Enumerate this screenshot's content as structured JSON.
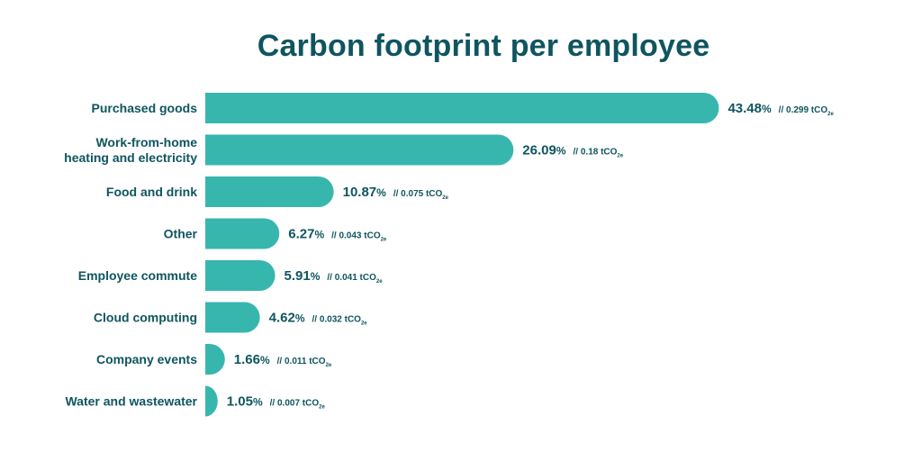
{
  "colors": {
    "bar": "#37b6ae",
    "text": "#0f5560",
    "background": "#ffffff"
  },
  "chart_data": {
    "type": "bar",
    "orientation": "horizontal",
    "title": "Carbon footprint per employee",
    "categories": [
      [
        "Purchased goods"
      ],
      [
        "Work-from-home",
        "heating and electricity"
      ],
      [
        "Food and drink"
      ],
      [
        "Other"
      ],
      [
        "Employee commute"
      ],
      [
        "Cloud computing"
      ],
      [
        "Company events"
      ],
      [
        "Water and wastewater"
      ]
    ],
    "values": [
      43.48,
      26.09,
      10.87,
      6.27,
      5.91,
      4.62,
      1.66,
      1.05
    ],
    "value_suffix": "%",
    "secondary_values": [
      "0.299",
      "0.18",
      "0.075",
      "0.043",
      "0.041",
      "0.032",
      "0.011",
      "0.007"
    ],
    "secondary_prefix": "//",
    "secondary_unit": "tCO",
    "secondary_unit_subscript": "2e",
    "xlabel": "",
    "ylabel": "",
    "grid": false,
    "legend": "none"
  }
}
